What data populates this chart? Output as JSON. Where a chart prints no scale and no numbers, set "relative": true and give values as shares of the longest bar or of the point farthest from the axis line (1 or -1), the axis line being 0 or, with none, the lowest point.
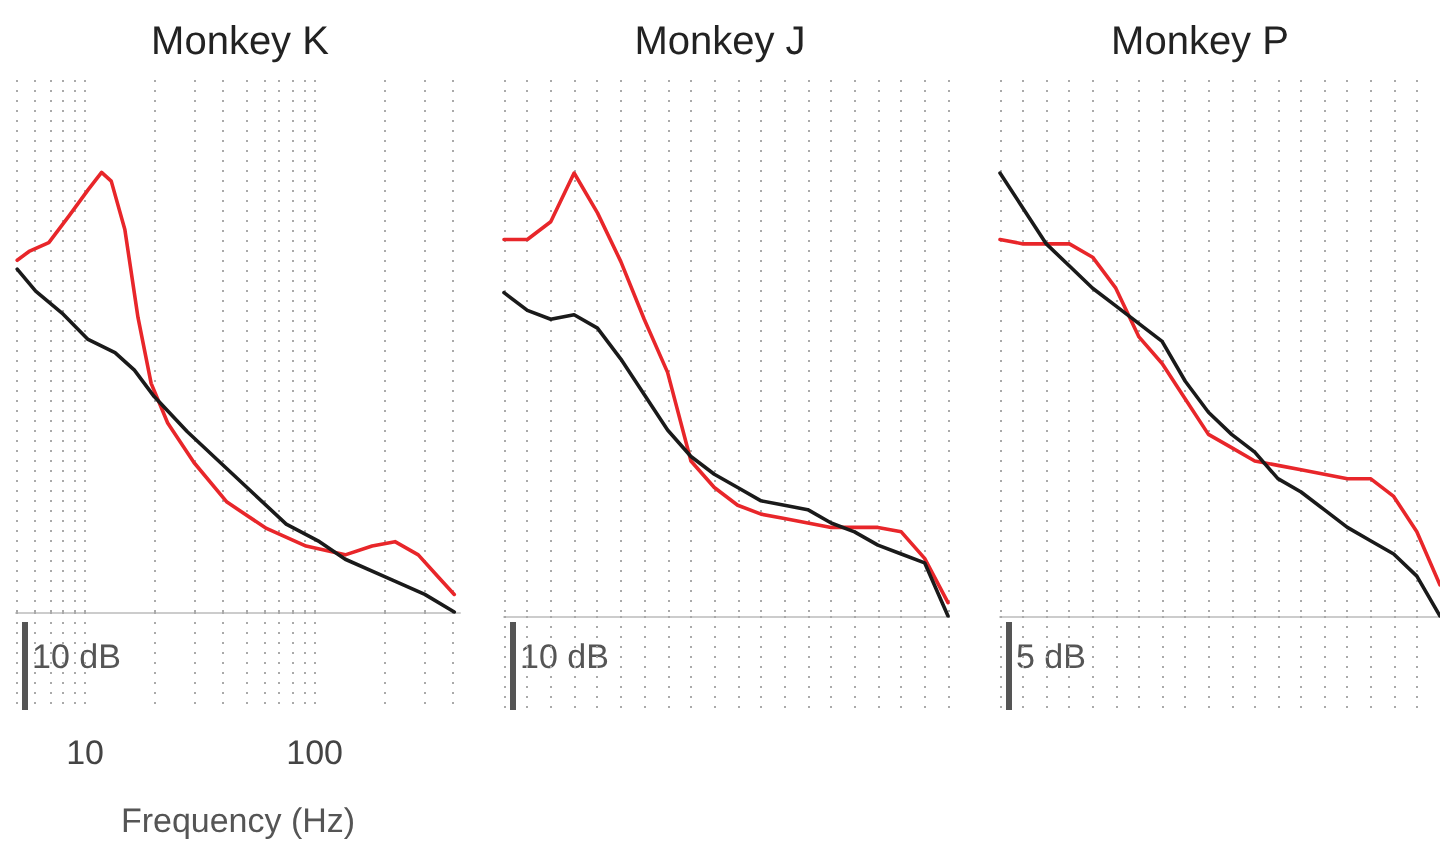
{
  "chart_data": [
    {
      "type": "line",
      "title": "Monkey K",
      "xlabel": "Frequency (Hz)",
      "relative": true,
      "log": "x",
      "grid": "x",
      "marker": "none",
      "line_style": "solid",
      "tick_labels": "x",
      "annotations": [
        "10 dB"
      ],
      "xlim": [
        5,
        430
      ],
      "xticks": [
        {
          "value": 5,
          "label": null
        },
        {
          "value": 6,
          "label": null
        },
        {
          "value": 7,
          "label": null
        },
        {
          "value": 8,
          "label": null
        },
        {
          "value": 9,
          "label": null
        },
        10,
        {
          "value": 20,
          "label": null
        },
        {
          "value": 30,
          "label": null
        },
        {
          "value": 40,
          "label": null
        },
        {
          "value": 50,
          "label": null
        },
        {
          "value": 60,
          "label": null
        },
        {
          "value": 70,
          "label": null
        },
        {
          "value": 80,
          "label": null
        },
        {
          "value": 90,
          "label": null
        },
        100,
        {
          "value": 200,
          "label": null
        },
        {
          "value": 300,
          "label": null
        },
        {
          "value": 400,
          "label": null
        }
      ],
      "series": [
        {
          "color": "#e8262a",
          "x": [
            5.06,
            5.7,
            6.95,
            8.48,
            10.3,
            11.8,
            13,
            14.9,
            17,
            19.4,
            22.9,
            29.8,
            41.5,
            61.7,
            91.8,
            136,
            178,
            224,
            283,
            345,
            406
          ],
          "values": [
            0.8,
            0.82,
            0.84,
            0.9,
            0.96,
            1,
            0.98,
            0.87,
            0.67,
            0.52,
            0.43,
            0.34,
            0.25,
            0.19,
            0.15,
            0.13,
            0.15,
            0.16,
            0.13,
            0.08,
            0.04
          ]
        },
        {
          "color": "#1a1a1a",
          "x": [
            5.06,
            6.09,
            7.93,
            10.3,
            13.5,
            16.4,
            20,
            27.9,
            38.8,
            54,
            75.2,
            105,
            136,
            203,
            302,
            406
          ],
          "values": [
            0.78,
            0.73,
            0.68,
            0.62,
            0.59,
            0.55,
            0.49,
            0.41,
            0.34,
            0.27,
            0.2,
            0.16,
            0.12,
            0.08,
            0.04,
            0
          ]
        }
      ]
    },
    {
      "type": "line",
      "title": "Monkey J",
      "relative": true,
      "grid": "x",
      "marker": "none",
      "line_style": "solid",
      "tick_labels": false,
      "annotations": [
        "10 dB"
      ],
      "categories": [
        null,
        null,
        null,
        null,
        null,
        null,
        null,
        null,
        null,
        null,
        null,
        null,
        null,
        null,
        null,
        null,
        null,
        null,
        null,
        null
      ],
      "series": [
        {
          "color": "#e8262a",
          "values": [
            0.85,
            0.85,
            0.89,
            1,
            0.91,
            0.8,
            0.67,
            0.55,
            0.35,
            0.29,
            0.25,
            0.23,
            0.22,
            0.21,
            0.2,
            0.2,
            0.2,
            0.19,
            0.13,
            0.03
          ]
        },
        {
          "color": "#1a1a1a",
          "values": [
            0.73,
            0.69,
            0.67,
            0.68,
            0.65,
            0.58,
            0.5,
            0.42,
            0.36,
            0.32,
            0.29,
            0.26,
            0.25,
            0.24,
            0.21,
            0.19,
            0.16,
            0.14,
            0.12,
            0
          ]
        }
      ]
    },
    {
      "type": "line",
      "title": "Monkey P",
      "relative": true,
      "grid": "x",
      "marker": "none",
      "line_style": "solid",
      "tick_labels": false,
      "annotations": [
        "5 dB"
      ],
      "categories": [
        null,
        null,
        null,
        null,
        null,
        null,
        null,
        null,
        null,
        null,
        null,
        null,
        null,
        null,
        null,
        null,
        null,
        null,
        null,
        null
      ],
      "series": [
        {
          "color": "#e8262a",
          "values": [
            0.85,
            0.84,
            0.84,
            0.84,
            0.81,
            0.74,
            0.63,
            0.57,
            0.49,
            0.41,
            0.38,
            0.35,
            0.34,
            0.33,
            0.32,
            0.31,
            0.31,
            0.27,
            0.19,
            0.07
          ]
        },
        {
          "color": "#1a1a1a",
          "values": [
            1,
            0.92,
            0.84,
            0.79,
            0.74,
            0.7,
            0.66,
            0.62,
            0.53,
            0.46,
            0.41,
            0.37,
            0.31,
            0.28,
            0.24,
            0.2,
            0.17,
            0.14,
            0.09,
            0
          ]
        }
      ]
    }
  ]
}
